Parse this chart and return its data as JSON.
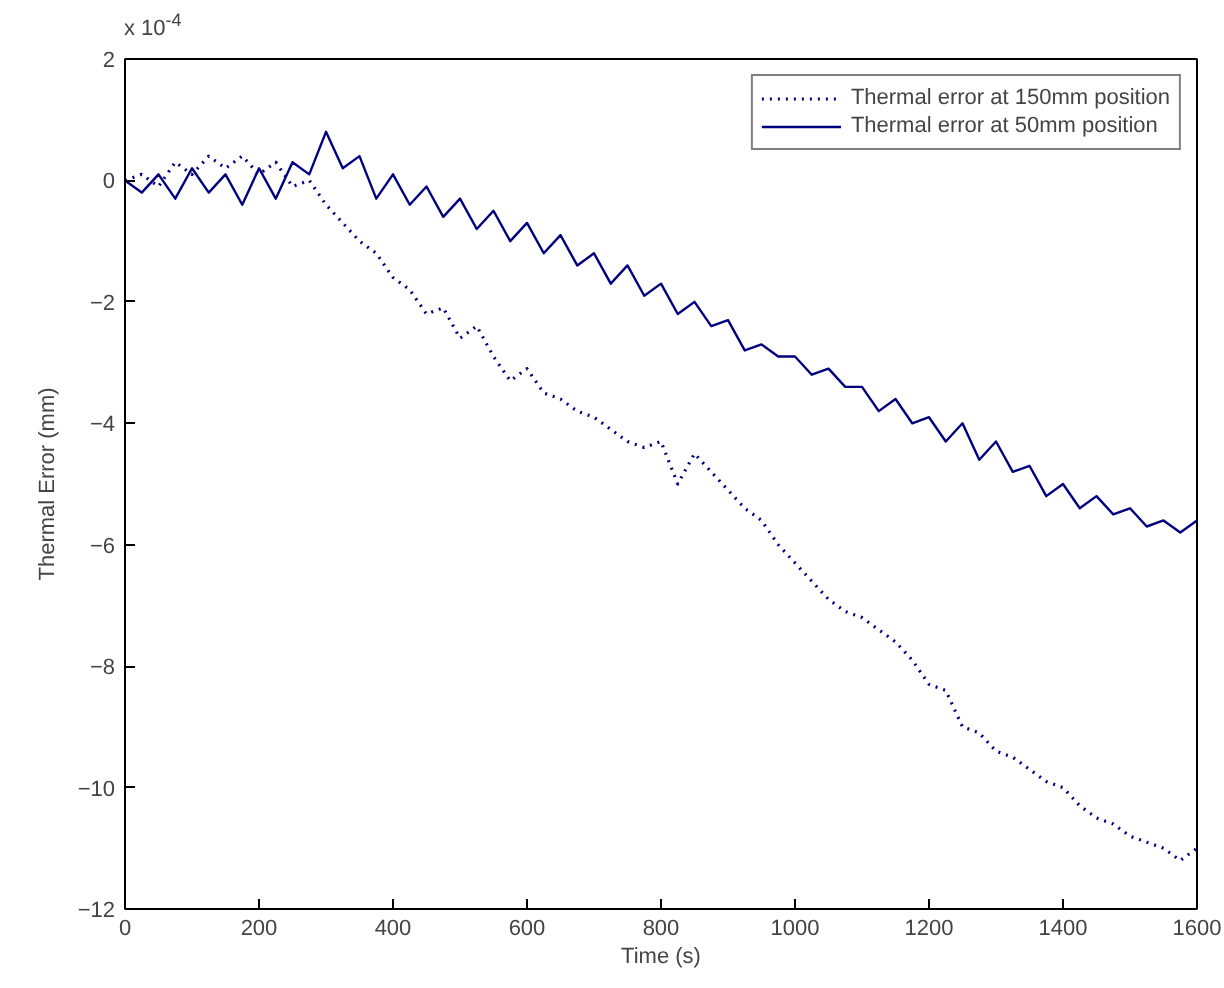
{
  "chart_data": {
    "type": "line",
    "xlabel": "Time (s)",
    "ylabel": "Thermal Error (mm)",
    "annotations": [
      "x 10$^{-4}$"
    ],
    "x": [
      0,
      25,
      50,
      75,
      100,
      125,
      150,
      175,
      200,
      225,
      250,
      275,
      300,
      325,
      350,
      375,
      400,
      425,
      450,
      475,
      500,
      525,
      550,
      575,
      600,
      625,
      650,
      675,
      700,
      725,
      750,
      775,
      800,
      825,
      850,
      875,
      900,
      925,
      950,
      975,
      1000,
      1025,
      1050,
      1075,
      1100,
      1125,
      1150,
      1175,
      1200,
      1225,
      1250,
      1275,
      1300,
      1325,
      1350,
      1375,
      1400,
      1425,
      1450,
      1475,
      1500,
      1525,
      1550,
      1575,
      1600
    ],
    "series": [
      {
        "name": "Thermal error at 150mm position",
        "color": "#00007f",
        "line_style": "dotted",
        "values": [
          0,
          0.1,
          -0.1,
          0.3,
          0.1,
          0.4,
          0.2,
          0.4,
          0.1,
          0.3,
          -0.1,
          0,
          -0.4,
          -0.7,
          -1.0,
          -1.2,
          -1.6,
          -1.8,
          -2.2,
          -2.1,
          -2.6,
          -2.4,
          -2.9,
          -3.3,
          -3.1,
          -3.5,
          -3.6,
          -3.8,
          -3.9,
          -4.1,
          -4.3,
          -4.4,
          -4.3,
          -5.0,
          -4.5,
          -4.8,
          -5.1,
          -5.4,
          -5.6,
          -6.0,
          -6.3,
          -6.6,
          -6.9,
          -7.1,
          -7.2,
          -7.4,
          -7.6,
          -7.9,
          -8.3,
          -8.4,
          -9.0,
          -9.1,
          -9.4,
          -9.5,
          -9.7,
          -9.9,
          -10.0,
          -10.3,
          -10.5,
          -10.6,
          -10.8,
          -10.9,
          -11.0,
          -11.2,
          -11.0
        ]
      },
      {
        "name": "Thermal error at 50mm position",
        "color": "#00007f",
        "line_style": "solid",
        "values": [
          0,
          -0.2,
          0.1,
          -0.3,
          0.2,
          -0.2,
          0.1,
          -0.4,
          0.2,
          -0.3,
          0.3,
          0.1,
          0.8,
          0.2,
          0.4,
          -0.3,
          0.1,
          -0.4,
          -0.1,
          -0.6,
          -0.3,
          -0.8,
          -0.5,
          -1.0,
          -0.7,
          -1.2,
          -0.9,
          -1.4,
          -1.2,
          -1.7,
          -1.4,
          -1.9,
          -1.7,
          -2.2,
          -2.0,
          -2.4,
          -2.3,
          -2.8,
          -2.7,
          -2.9,
          -2.9,
          -3.2,
          -3.1,
          -3.4,
          -3.4,
          -3.8,
          -3.6,
          -4.0,
          -3.9,
          -4.3,
          -4.0,
          -4.6,
          -4.3,
          -4.8,
          -4.7,
          -5.2,
          -5.0,
          -5.4,
          -5.2,
          -5.5,
          -5.4,
          -5.7,
          -5.6,
          -5.8,
          -5.6
        ]
      }
    ],
    "xlim": [
      0,
      1600
    ],
    "xticks": [
      0,
      200,
      400,
      600,
      800,
      1000,
      1200,
      1400,
      1600
    ],
    "ylim": [
      -12,
      2
    ],
    "yticks": [
      -12,
      -10,
      -8,
      -6,
      -4,
      -2,
      0,
      2
    ],
    "legend": "top right",
    "grid": false,
    "marker": "none"
  }
}
